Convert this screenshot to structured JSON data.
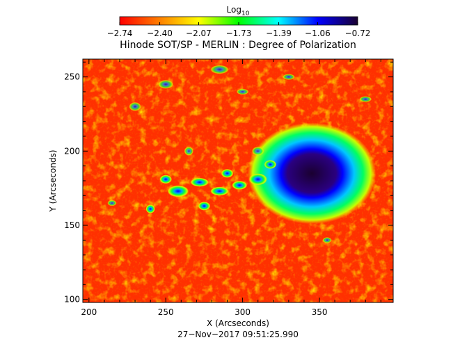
{
  "chart_data": {
    "type": "heatmap",
    "title": "Hinode SOT/SP - MERLIN : Degree of Polarization",
    "xlabel": "X (Arcseconds)",
    "ylabel": "Y (Arcseconds)",
    "xlim": [
      196,
      398
    ],
    "ylim": [
      98,
      262
    ],
    "x_ticks": [
      {
        "value": 200,
        "label": "200"
      },
      {
        "value": 250,
        "label": "250"
      },
      {
        "value": 300,
        "label": "300"
      },
      {
        "value": 350,
        "label": "350"
      }
    ],
    "y_ticks": [
      {
        "value": 100,
        "label": "100"
      },
      {
        "value": 150,
        "label": "150"
      },
      {
        "value": 200,
        "label": "200"
      },
      {
        "value": 250,
        "label": "250"
      }
    ],
    "colorbar": {
      "label_base": "Log",
      "label_sub": "10",
      "min": -2.74,
      "max": -0.72,
      "ticks": [
        {
          "value": -2.74,
          "label": "−2.74"
        },
        {
          "value": -2.4,
          "label": "−2.40"
        },
        {
          "value": -2.07,
          "label": "−2.07"
        },
        {
          "value": -1.73,
          "label": "−1.73"
        },
        {
          "value": -1.39,
          "label": "−1.39"
        },
        {
          "value": -1.06,
          "label": "−1.06"
        },
        {
          "value": -0.72,
          "label": "−0.72"
        }
      ],
      "colors": [
        "#ff0000",
        "#ff7f00",
        "#ffff00",
        "#00ff00",
        "#00ffff",
        "#0000ff",
        "#1a0030"
      ]
    },
    "features": [
      {
        "kind": "sunspot_core",
        "x": 345,
        "y": 185,
        "rx": 10,
        "ry": 8
      },
      {
        "kind": "penumbra",
        "x": 345,
        "y": 185,
        "rx": 22,
        "ry": 18
      },
      {
        "kind": "plage",
        "x": 280,
        "y": 175
      }
    ],
    "grid": false,
    "legend": "none"
  },
  "footer": {
    "timestamp": "27−Nov−2017 09:51:25.990"
  }
}
